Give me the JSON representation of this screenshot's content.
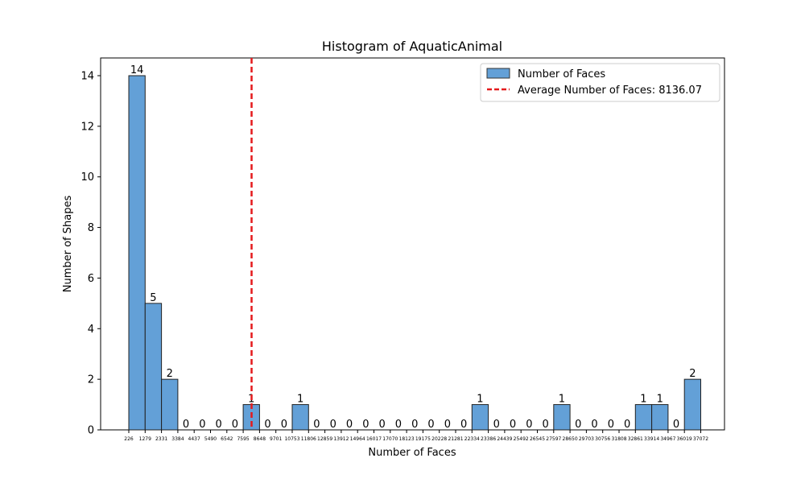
{
  "chart_data": {
    "type": "bar",
    "title": "Histogram of AquaticAnimal",
    "xlabel": "Number of Faces",
    "ylabel": "Number of Shapes",
    "ylim": [
      0,
      14.7
    ],
    "yticks": [
      0,
      2,
      4,
      6,
      8,
      10,
      12,
      14
    ],
    "bin_edges": [
      226,
      1279,
      2331,
      3384,
      4437,
      5490,
      6542,
      7595,
      8648,
      9701,
      10753,
      11806,
      12859,
      13912,
      14964,
      16017,
      17070,
      18123,
      19175,
      20228,
      21281,
      22334,
      23386,
      24439,
      25492,
      26545,
      27597,
      28650,
      29703,
      30756,
      31808,
      32861,
      33914,
      34967,
      36019,
      37072
    ],
    "counts": [
      14,
      5,
      2,
      0,
      0,
      0,
      0,
      1,
      0,
      0,
      1,
      0,
      0,
      0,
      0,
      0,
      0,
      0,
      0,
      0,
      0,
      1,
      0,
      0,
      0,
      0,
      1,
      0,
      0,
      0,
      0,
      1,
      1,
      0,
      2
    ],
    "series": [
      {
        "name": "Number of Faces",
        "color": "#5b9bd5"
      }
    ],
    "average": {
      "value": 8136.07,
      "label": "Average Number of Faces: 8136.07",
      "color": "#e41a1c"
    },
    "legend_position": "upper right",
    "grid": false
  }
}
